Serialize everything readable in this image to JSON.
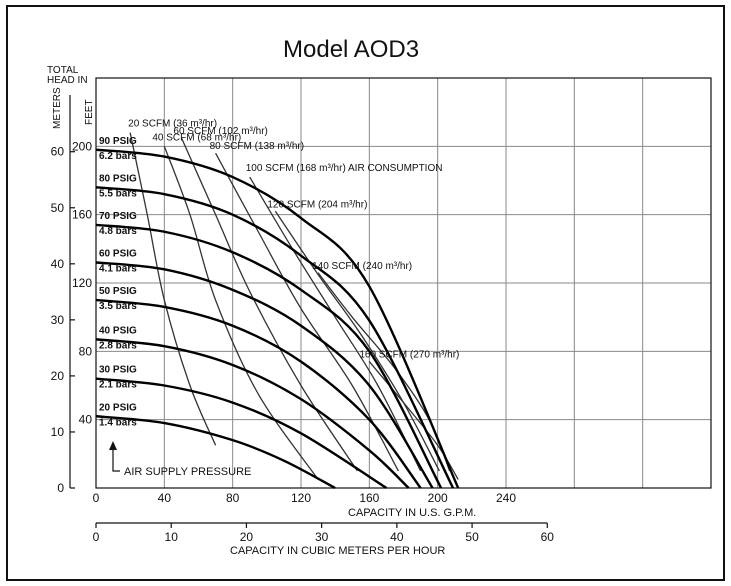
{
  "chart_data": {
    "type": "line",
    "title": "Model AOD3",
    "head_axis_label": [
      "TOTAL",
      "HEAD IN"
    ],
    "meters_label": "METERS",
    "feet_label": "FEET",
    "x_label": "CAPACITY IN U.S. G.P.M.",
    "x2_label": "CAPACITY IN CUBIC METERS PER HOUR",
    "x_ticks": [
      "0",
      "40",
      "80",
      "120",
      "160",
      "200",
      "240"
    ],
    "x2_ticks": [
      "0",
      "10",
      "20",
      "30",
      "40",
      "50",
      "60"
    ],
    "meters_ticks": [
      "0",
      "10",
      "20",
      "30",
      "40",
      "50",
      "60"
    ],
    "feet_ticks": [
      "40",
      "80",
      "120",
      "160",
      "200"
    ],
    "xlim": [
      0,
      360
    ],
    "ylim_feet": [
      0,
      240
    ],
    "pressure_series": [
      {
        "name": "20 PSIG",
        "sub": "1.4 bars",
        "points": [
          [
            0,
            42
          ],
          [
            40,
            38
          ],
          [
            80,
            28
          ],
          [
            110,
            16
          ],
          [
            140,
            0
          ]
        ]
      },
      {
        "name": "30 PSIG",
        "sub": "2.1 bars",
        "points": [
          [
            0,
            64
          ],
          [
            40,
            60
          ],
          [
            80,
            50
          ],
          [
            120,
            32
          ],
          [
            170,
            0
          ]
        ]
      },
      {
        "name": "40 PSIG",
        "sub": "2.8 bars",
        "points": [
          [
            0,
            87
          ],
          [
            40,
            83
          ],
          [
            80,
            72
          ],
          [
            120,
            52
          ],
          [
            160,
            22
          ],
          [
            183,
            0
          ]
        ]
      },
      {
        "name": "50 PSIG",
        "sub": "3.5 bars",
        "points": [
          [
            0,
            110
          ],
          [
            40,
            106
          ],
          [
            80,
            95
          ],
          [
            120,
            74
          ],
          [
            160,
            40
          ],
          [
            190,
            0
          ]
        ]
      },
      {
        "name": "60 PSIG",
        "sub": "4.1 bars",
        "points": [
          [
            0,
            132
          ],
          [
            40,
            128
          ],
          [
            80,
            116
          ],
          [
            120,
            95
          ],
          [
            160,
            60
          ],
          [
            197,
            0
          ]
        ]
      },
      {
        "name": "70 PSIG",
        "sub": "4.8 bars",
        "points": [
          [
            0,
            154
          ],
          [
            40,
            150
          ],
          [
            80,
            138
          ],
          [
            120,
            116
          ],
          [
            160,
            80
          ],
          [
            202,
            0
          ]
        ]
      },
      {
        "name": "80 PSIG",
        "sub": "5.5 bars",
        "points": [
          [
            0,
            176
          ],
          [
            40,
            172
          ],
          [
            80,
            160
          ],
          [
            120,
            136
          ],
          [
            160,
            98
          ],
          [
            209,
            0
          ]
        ]
      },
      {
        "name": "90 PSIG",
        "sub": "6.2 bars",
        "points": [
          [
            0,
            198
          ],
          [
            40,
            194
          ],
          [
            80,
            182
          ],
          [
            120,
            158
          ],
          [
            160,
            118
          ],
          [
            212,
            0
          ]
        ]
      }
    ],
    "air_consumption_series": [
      {
        "label": "20 SCFM (36 m³/hr)",
        "points": [
          [
            20,
            208
          ],
          [
            30,
            160
          ],
          [
            40,
            110
          ],
          [
            55,
            60
          ],
          [
            70,
            25
          ]
        ]
      },
      {
        "label": "40 SCFM (68 m³/hr)",
        "points": [
          [
            40,
            200
          ],
          [
            55,
            160
          ],
          [
            70,
            110
          ],
          [
            95,
            55
          ],
          [
            130,
            5
          ]
        ]
      },
      {
        "label": "60 SCFM (102 m³/hr)",
        "points": [
          [
            50,
            205
          ],
          [
            70,
            160
          ],
          [
            90,
            115
          ],
          [
            120,
            60
          ],
          [
            153,
            10
          ]
        ]
      },
      {
        "label": "80 SCFM (138 m³/hr)",
        "points": [
          [
            70,
            196
          ],
          [
            95,
            150
          ],
          [
            120,
            105
          ],
          [
            150,
            60
          ],
          [
            177,
            10
          ]
        ]
      },
      {
        "label": "100 SCFM (168 m³/hr) AIR CONSUMPTION",
        "points": [
          [
            90,
            182
          ],
          [
            115,
            140
          ],
          [
            140,
            100
          ],
          [
            165,
            60
          ],
          [
            190,
            10
          ]
        ]
      },
      {
        "label": "120 SCFM (204 m³/hr)",
        "points": [
          [
            105,
            162
          ],
          [
            130,
            125
          ],
          [
            155,
            90
          ],
          [
            180,
            50
          ],
          [
            201,
            10
          ]
        ]
      },
      {
        "label": "140 SCFM (240 m³/hr)",
        "points": [
          [
            130,
            126
          ],
          [
            150,
            100
          ],
          [
            175,
            70
          ],
          [
            195,
            40
          ],
          [
            207,
            10
          ]
        ]
      },
      {
        "label": "160 SCFM (270 m³/hr)",
        "points": [
          [
            160,
            74
          ],
          [
            180,
            50
          ],
          [
            200,
            25
          ],
          [
            212,
            5
          ]
        ]
      }
    ],
    "annotation": "AIR SUPPLY PRESSURE",
    "grid": true
  }
}
